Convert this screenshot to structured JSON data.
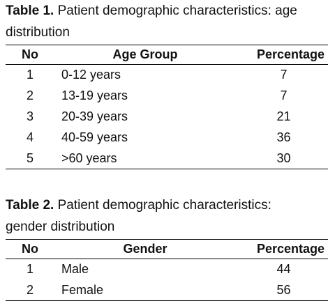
{
  "tables": [
    {
      "label": "Table 1.",
      "caption": "Patient demographic characteristics: age distribution",
      "columns": [
        "No",
        "Age Group",
        "Percentage"
      ],
      "rows": [
        [
          1,
          "0-12 years",
          7
        ],
        [
          2,
          "13-19 years",
          7
        ],
        [
          3,
          "20-39 years",
          21
        ],
        [
          4,
          "40-59 years",
          36
        ],
        [
          5,
          ">60 years",
          30
        ]
      ]
    },
    {
      "label": "Table 2.",
      "caption": "Patient demographic characteristics: gender distribution",
      "columns": [
        "No",
        "Gender",
        "Percentage"
      ],
      "rows": [
        [
          1,
          "Male",
          44
        ],
        [
          2,
          "Female",
          56
        ]
      ]
    }
  ]
}
